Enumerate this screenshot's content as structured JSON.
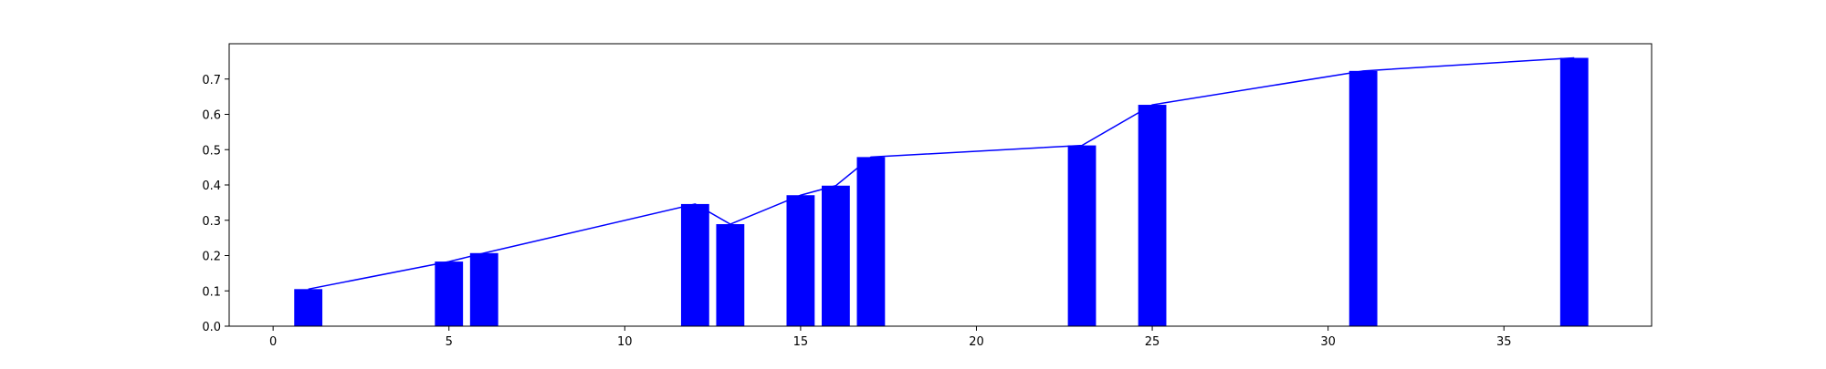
{
  "chart_data": {
    "type": "bar",
    "title": "",
    "xlabel": "",
    "ylabel": "",
    "xlim": [
      -1.25,
      39.2
    ],
    "ylim": [
      0,
      0.8
    ],
    "xticks": [
      0,
      5,
      10,
      15,
      20,
      25,
      30,
      35
    ],
    "yticks": [
      0.0,
      0.1,
      0.2,
      0.3,
      0.4,
      0.5,
      0.6,
      0.7
    ],
    "xtick_labels": [
      "0",
      "5",
      "10",
      "15",
      "20",
      "25",
      "30",
      "35"
    ],
    "ytick_labels": [
      "0.0",
      "0.1",
      "0.2",
      "0.3",
      "0.4",
      "0.5",
      "0.6",
      "0.7"
    ],
    "grid": false,
    "legend": "none",
    "bar_width": 0.8,
    "series": [
      {
        "type": "bar",
        "color": "#0000ff",
        "x": [
          1,
          5,
          6,
          12,
          13,
          15,
          16,
          17,
          23,
          25,
          31,
          37
        ],
        "values": [
          0.105,
          0.183,
          0.207,
          0.346,
          0.289,
          0.371,
          0.398,
          0.479,
          0.512,
          0.627,
          0.723,
          0.76
        ]
      },
      {
        "type": "line",
        "color": "#0000ff",
        "x": [
          1,
          5,
          6,
          12,
          13,
          15,
          16,
          17,
          23,
          25,
          31,
          37
        ],
        "values": [
          0.105,
          0.183,
          0.207,
          0.346,
          0.289,
          0.371,
          0.398,
          0.479,
          0.512,
          0.627,
          0.723,
          0.76
        ]
      }
    ]
  }
}
